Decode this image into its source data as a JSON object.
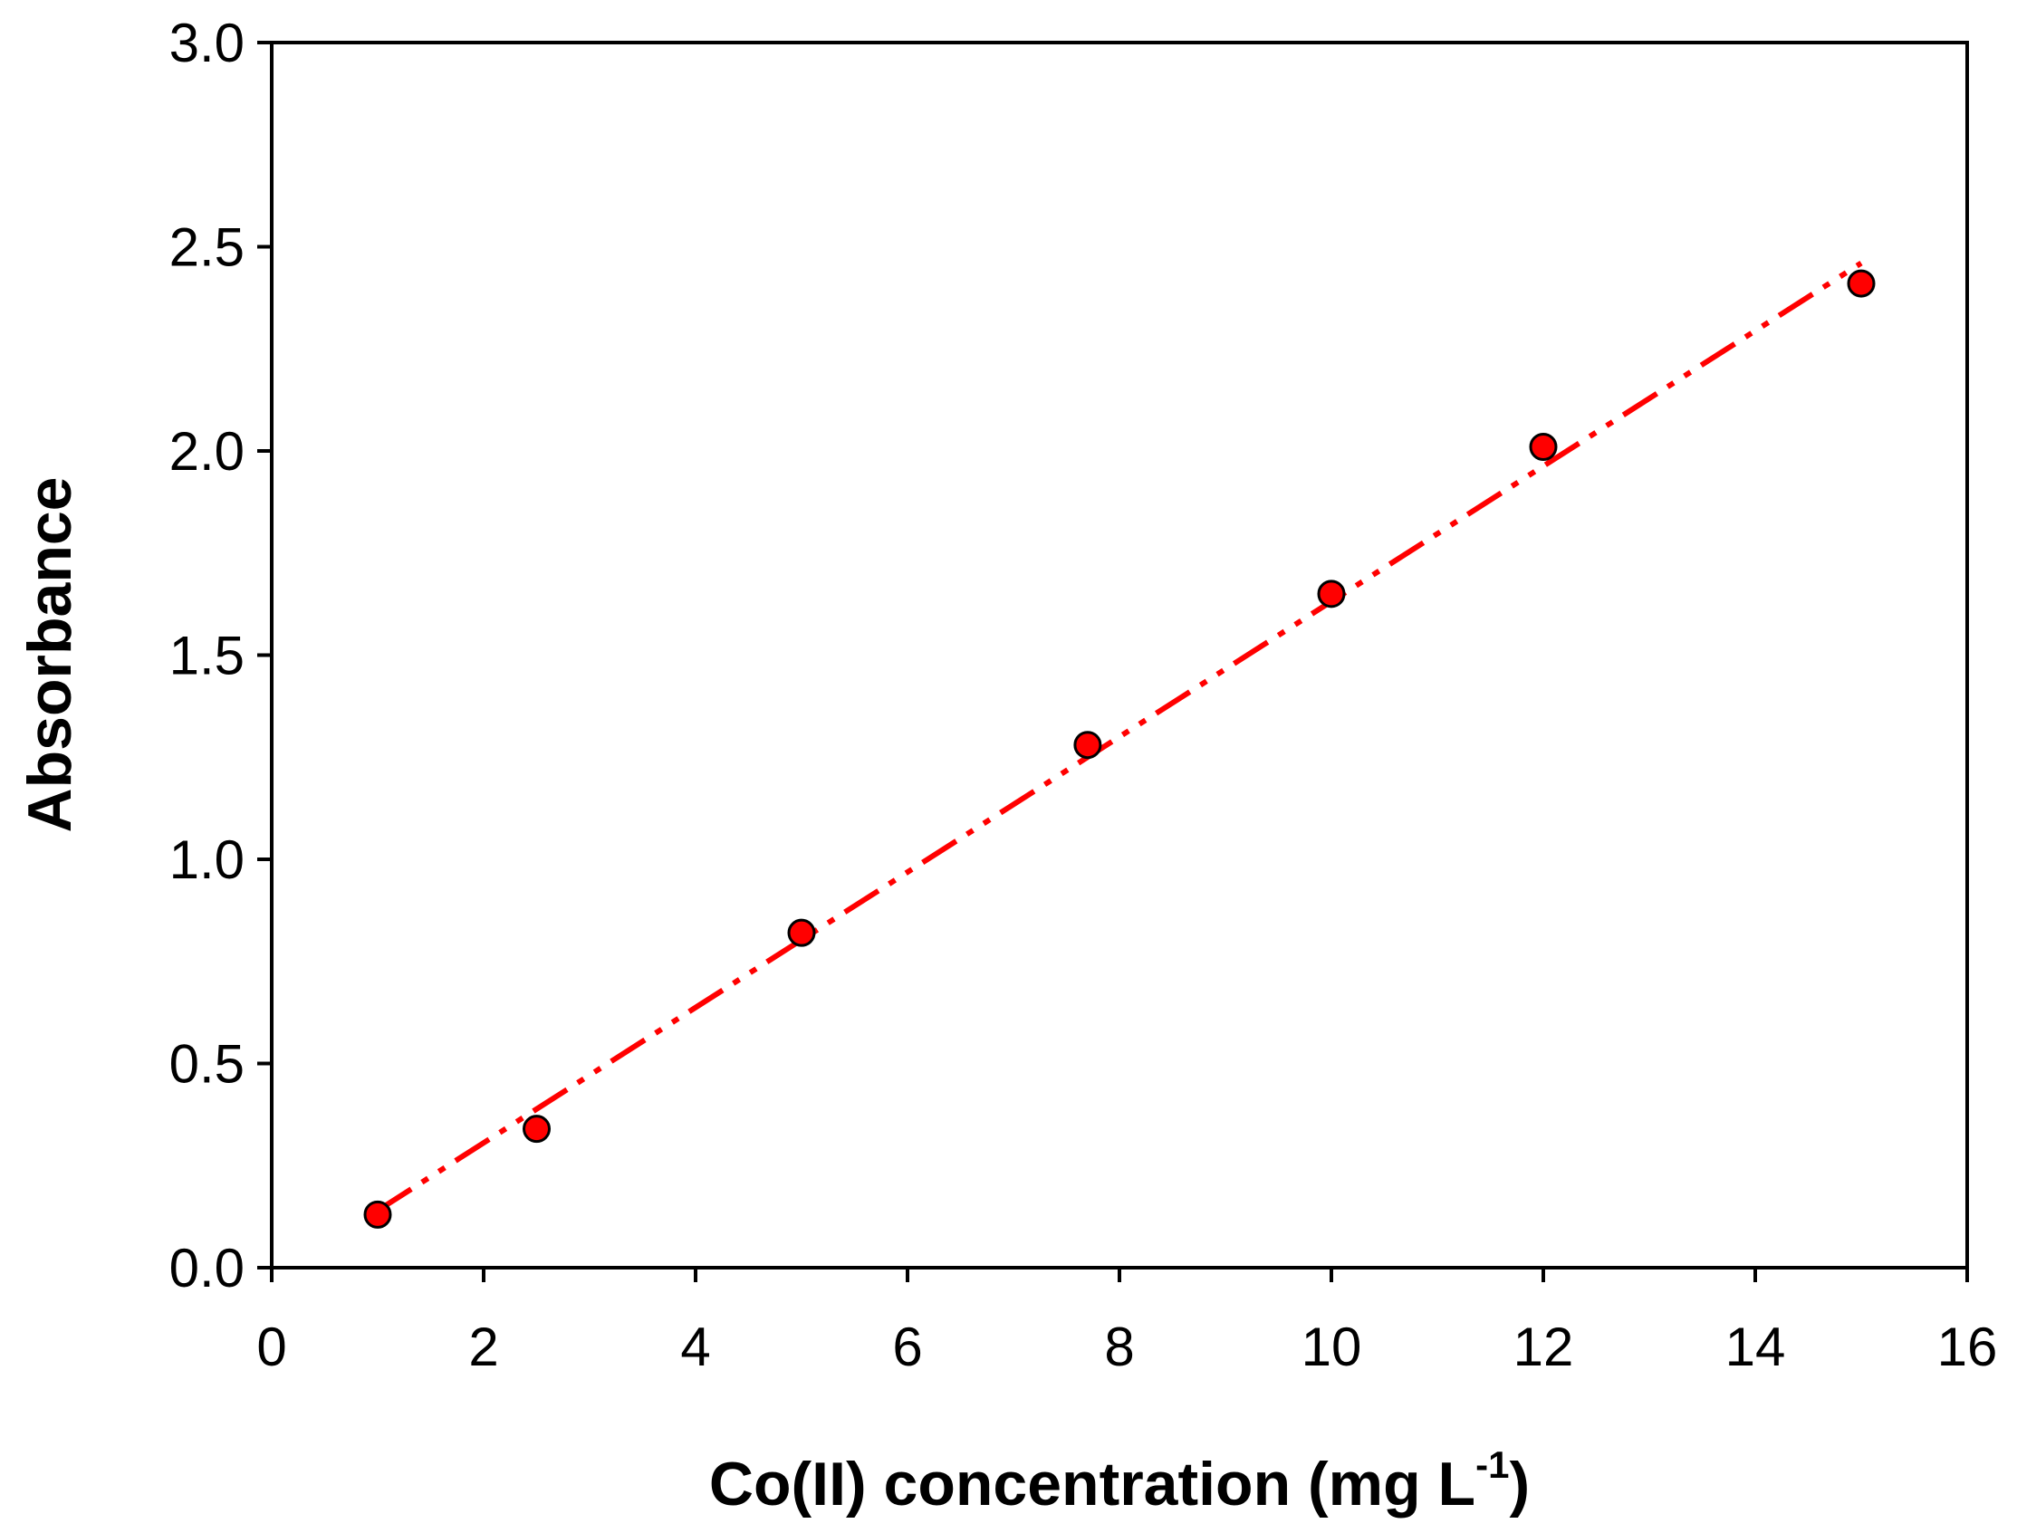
{
  "chart_data": {
    "type": "scatter",
    "title": "",
    "xlabel": "Co(II) concentration (mg L",
    "xlabel_sup": "-1",
    "xlabel_close": ")",
    "ylabel": "Absorbance",
    "xlim": [
      0,
      16
    ],
    "ylim": [
      0,
      3
    ],
    "xticks": [
      0,
      2,
      4,
      6,
      8,
      10,
      12,
      14,
      16
    ],
    "xtick_labels": [
      "0",
      "2",
      "4",
      "6",
      "8",
      "10",
      "12",
      "14",
      "16"
    ],
    "yticks": [
      0,
      0.5,
      1,
      1.5,
      2,
      2.5,
      3
    ],
    "ytick_labels": [
      "0.0",
      "0.5",
      "1.0",
      "1.5",
      "2.0",
      "2.5",
      "3.0"
    ],
    "grid": false,
    "legend": "none",
    "series": [
      {
        "x": [
          1,
          2.5,
          5,
          7.7,
          10,
          12,
          15
        ],
        "y": [
          0.13,
          0.34,
          0.82,
          1.28,
          1.65,
          2.01,
          2.41
        ],
        "marker_color": "#ff0000",
        "marker_edge": "#000000"
      }
    ],
    "fit_line": {
      "x": [
        1,
        15
      ],
      "y": [
        0.14,
        2.46
      ],
      "color": "#ff0000",
      "style": "dash-dot-dot"
    }
  }
}
